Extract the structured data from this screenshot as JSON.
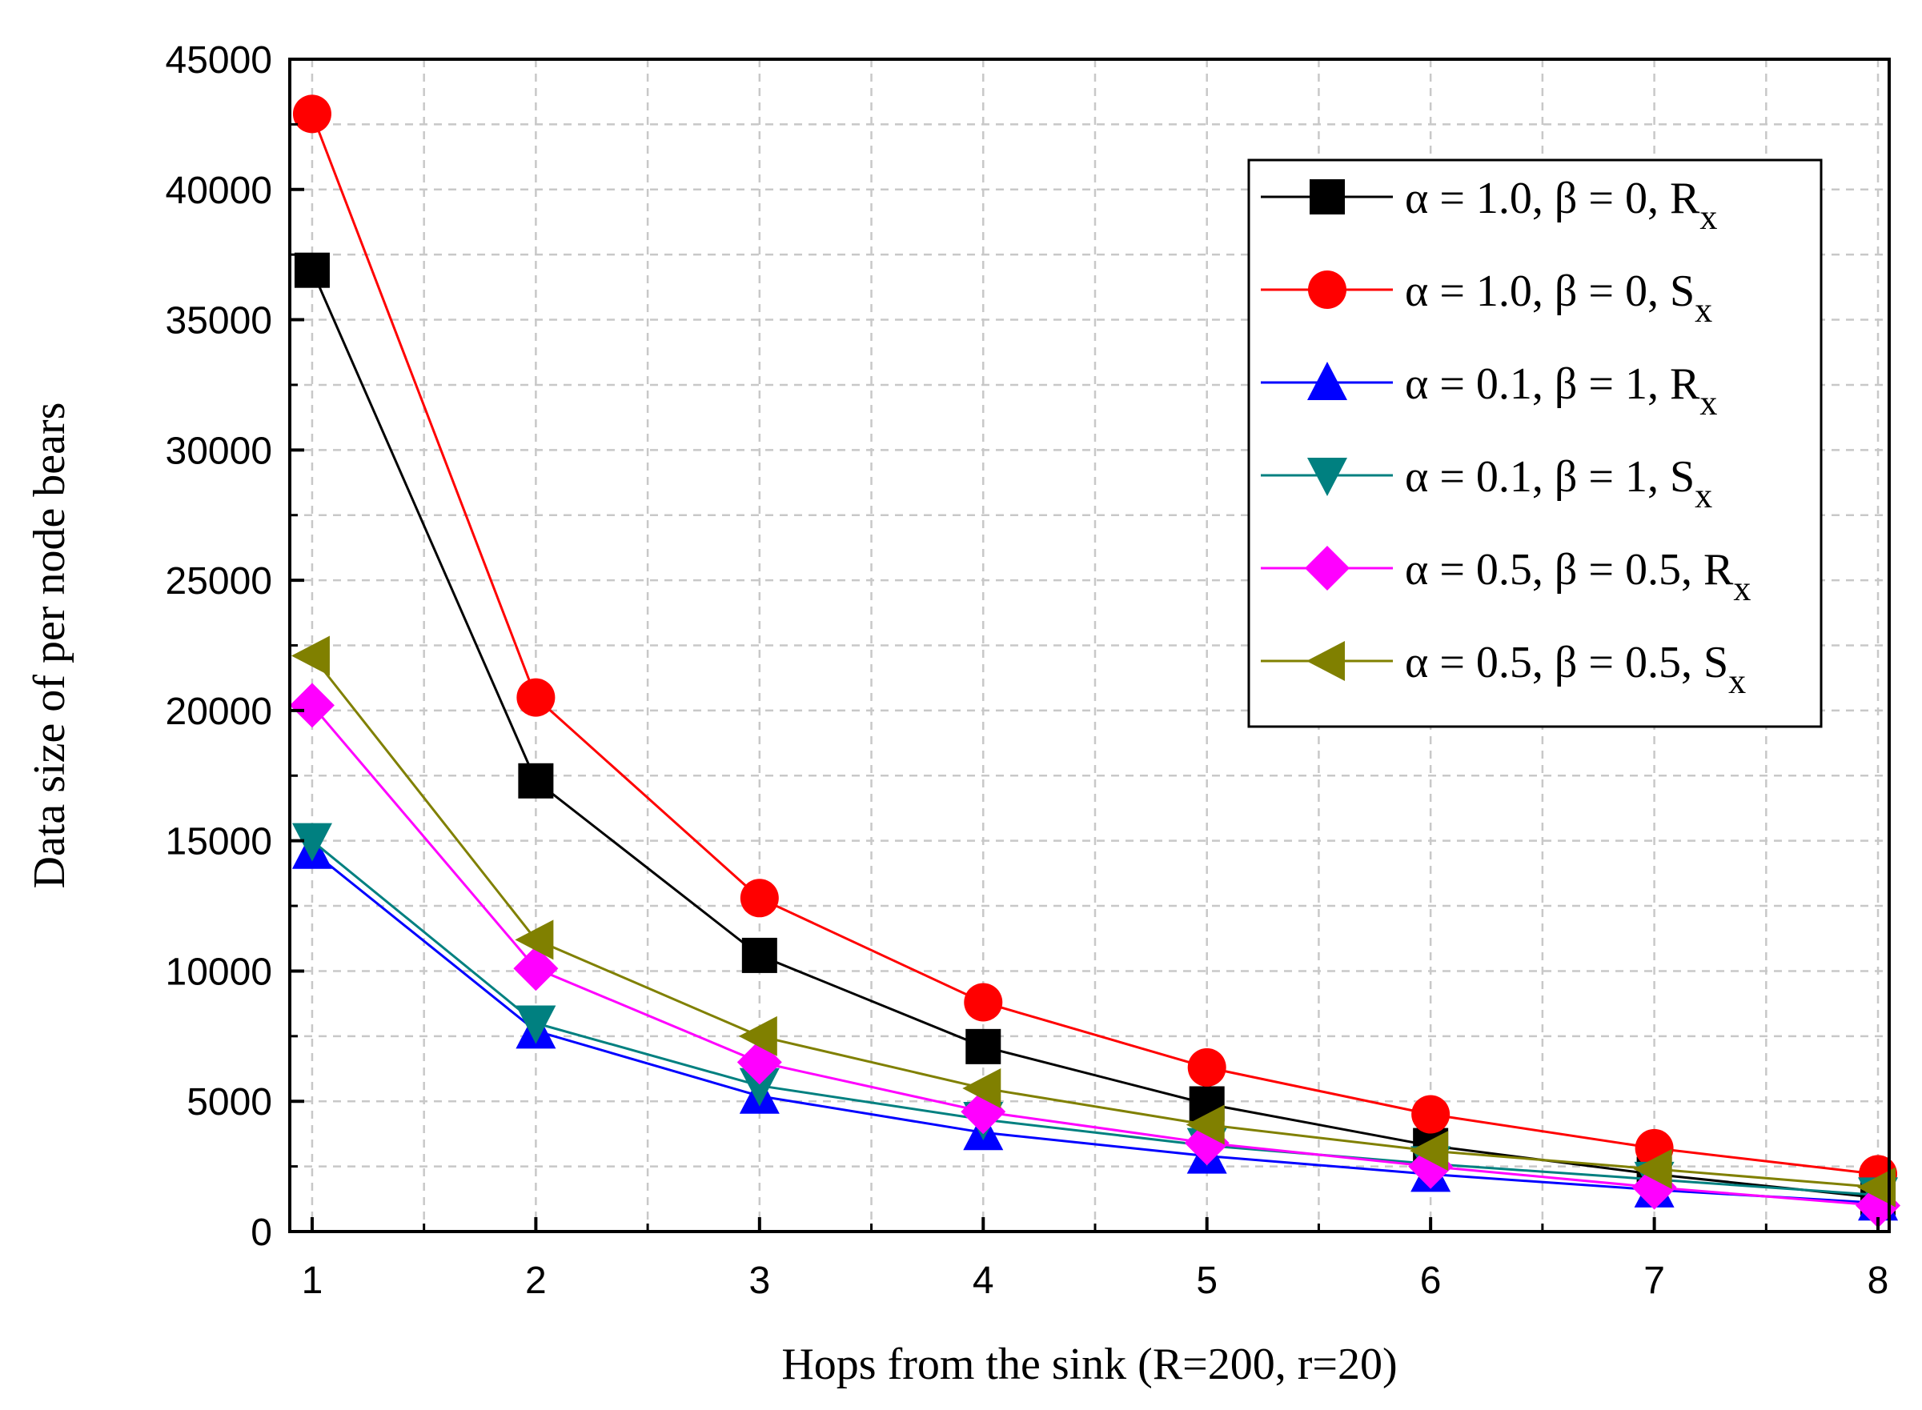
{
  "chart_data": {
    "type": "line",
    "title": "",
    "xlabel": "Hops from the sink (R=200, r=20)",
    "ylabel": "Data size of per node bears",
    "x": [
      1,
      2,
      3,
      4,
      5,
      6,
      7,
      8
    ],
    "xlim": [
      0.9,
      8.05
    ],
    "ylim": [
      0,
      45000
    ],
    "xticks": [
      1,
      2,
      3,
      4,
      5,
      6,
      7,
      8
    ],
    "yticks": [
      0,
      5000,
      10000,
      15000,
      20000,
      25000,
      30000,
      35000,
      40000,
      45000
    ],
    "grid": true,
    "legend_position": "top-right",
    "series": [
      {
        "name": "α = 1.0, β = 0, R",
        "subscript": "x",
        "color": "#000000",
        "marker": "square",
        "values": [
          36900,
          17300,
          10600,
          7100,
          4900,
          3300,
          2200,
          1300
        ]
      },
      {
        "name": "α = 1.0, β = 0, S",
        "subscript": "x",
        "color": "#ff0000",
        "marker": "circle",
        "values": [
          42900,
          20500,
          12800,
          8800,
          6300,
          4500,
          3200,
          2200
        ]
      },
      {
        "name": "α = 0.1, β = 1, R",
        "subscript": "x",
        "color": "#0000ff",
        "marker": "triangle-up",
        "values": [
          14600,
          7700,
          5200,
          3800,
          2900,
          2200,
          1600,
          1100
        ]
      },
      {
        "name": "α = 0.1, β = 1, S",
        "subscript": "x",
        "color": "#008080",
        "marker": "triangle-down",
        "values": [
          15000,
          8000,
          5600,
          4300,
          3300,
          2600,
          2000,
          1400
        ]
      },
      {
        "name": "α = 0.5, β = 0.5, R",
        "subscript": "x",
        "color": "#ff00ff",
        "marker": "diamond",
        "values": [
          20200,
          10100,
          6500,
          4600,
          3400,
          2500,
          1700,
          1000
        ]
      },
      {
        "name": "α = 0.5, β = 0.5, S",
        "subscript": "x",
        "color": "#808000",
        "marker": "triangle-left",
        "values": [
          22100,
          11200,
          7500,
          5500,
          4100,
          3100,
          2400,
          1700
        ]
      }
    ]
  }
}
